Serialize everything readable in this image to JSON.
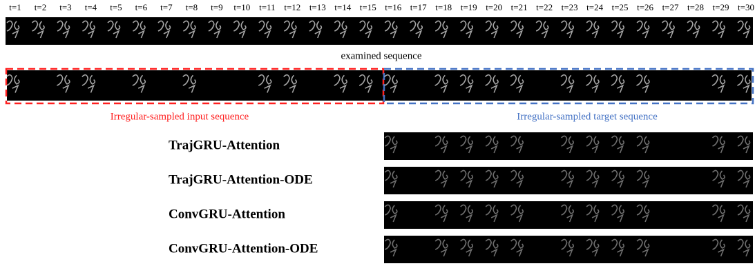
{
  "time_labels": [
    "t=1",
    "t=2",
    "t=3",
    "t=4",
    "t=5",
    "t=6",
    "t=7",
    "t=8",
    "t=9",
    "t=10",
    "t=11",
    "t=12",
    "t=13",
    "t=14",
    "t=15",
    "t=16",
    "t=17",
    "t=18",
    "t=19",
    "t=20",
    "t=21",
    "t=22",
    "t=23",
    "t=24",
    "t=25",
    "t=26",
    "t=27",
    "t=28",
    "t=29",
    "t=30"
  ],
  "examined_caption": "examined sequence",
  "input_caption": "Irregular-sampled input sequence",
  "target_caption": "Irregular-sampled target sequence",
  "models": [
    "TrajGRU-Attention",
    "TrajGRU-Attention-ODE",
    "ConvGRU-Attention",
    "ConvGRU-Attention-ODE"
  ]
}
